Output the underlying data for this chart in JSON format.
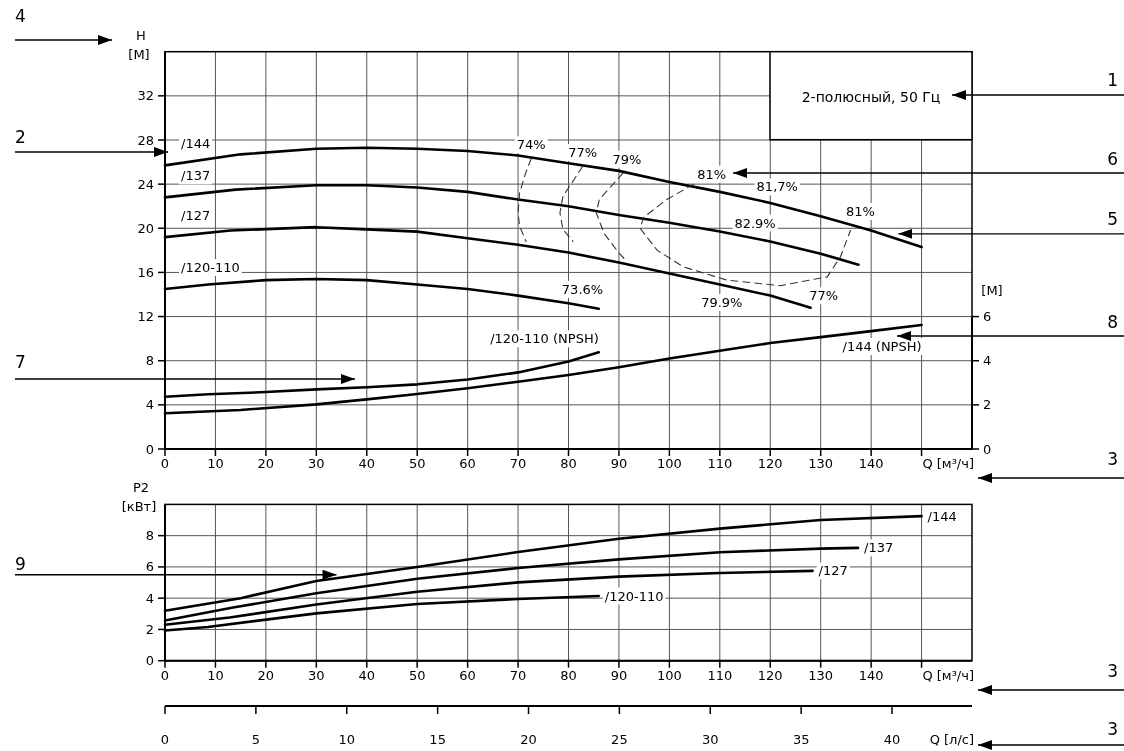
{
  "chart_data": [
    {
      "type": "line",
      "title": "2-полюсный, 50 Гц",
      "xlabel": "Q [м³/ч]",
      "ylabel": "H [М]",
      "y2label": "[М]",
      "xlim": [
        0,
        160
      ],
      "xticks": [
        0,
        10,
        20,
        30,
        40,
        50,
        60,
        70,
        80,
        90,
        100,
        110,
        120,
        130,
        140,
        {
          "value": 150,
          "label": null
        }
      ],
      "ylim": [
        0,
        36
      ],
      "yticks": [
        0,
        4,
        8,
        12,
        16,
        20,
        24,
        28,
        32
      ],
      "y2lim": [
        0,
        18
      ],
      "y2ticks": [
        0,
        2,
        4,
        6
      ],
      "grid": true,
      "series": [
        {
          "name": "/144",
          "color": "#000000",
          "x": [
            0,
            15,
            30,
            40,
            50,
            60,
            70,
            80,
            90,
            100,
            110,
            120,
            130,
            140,
            150
          ],
          "values": [
            25.7,
            26.7,
            27.2,
            27.3,
            27.2,
            27.0,
            26.6,
            25.9,
            25.2,
            24.2,
            23.3,
            22.3,
            21.1,
            19.8,
            18.3
          ]
        },
        {
          "name": "/137",
          "color": "#000000",
          "x": [
            0,
            14,
            30,
            40,
            50,
            60,
            70,
            80,
            90,
            100,
            110,
            120,
            130,
            137.5
          ],
          "values": [
            22.8,
            23.5,
            23.9,
            23.9,
            23.7,
            23.3,
            22.6,
            22.0,
            21.2,
            20.5,
            19.7,
            18.8,
            17.7,
            16.7
          ]
        },
        {
          "name": "/127",
          "color": "#000000",
          "x": [
            0,
            13,
            30,
            40,
            50,
            60,
            70,
            80,
            90,
            100,
            110,
            120,
            128
          ],
          "values": [
            19.2,
            19.8,
            20.1,
            19.9,
            19.7,
            19.1,
            18.5,
            17.8,
            16.9,
            15.9,
            14.9,
            13.9,
            12.8
          ]
        },
        {
          "name": "/120-110",
          "color": "#000000",
          "x": [
            0,
            8.6,
            20,
            30,
            40,
            50,
            60,
            70,
            80,
            86
          ],
          "values": [
            14.5,
            14.9,
            15.3,
            15.4,
            15.3,
            14.9,
            14.5,
            13.9,
            13.2,
            12.7
          ]
        },
        {
          "name": "/120-110 (NPSH)",
          "color": "#000000",
          "axis": "y2",
          "x": [
            0,
            8.6,
            20,
            30,
            40,
            50,
            60,
            70,
            80,
            86
          ],
          "values": [
            2.37,
            2.48,
            2.58,
            2.7,
            2.8,
            2.93,
            3.15,
            3.47,
            3.96,
            4.38
          ]
        },
        {
          "name": "/144 (NPSH)",
          "color": "#000000",
          "axis": "y2",
          "x": [
            0,
            15,
            30,
            40,
            50,
            60,
            70,
            80,
            90,
            100,
            110,
            120,
            130,
            140,
            150
          ],
          "values": [
            1.62,
            1.77,
            2.02,
            2.25,
            2.49,
            2.75,
            3.05,
            3.35,
            3.7,
            4.1,
            4.45,
            4.8,
            5.07,
            5.34,
            5.62
          ]
        },
        {
          "color": "#333333",
          "line_style": "dashed",
          "x": [
            72.6,
            71.5,
            70.3,
            70,
            70.3,
            71.6
          ],
          "values": [
            26.3,
            25,
            23.2,
            21.4,
            20.2,
            18.8
          ]
        },
        {
          "color": "#333333",
          "line_style": "dashed",
          "x": [
            82.8,
            78.9,
            78.3,
            78.9,
            80.9
          ],
          "values": [
            25.6,
            22.9,
            21.4,
            19.9,
            18.8
          ]
        },
        {
          "color": "#333333",
          "line_style": "dashed",
          "x": [
            90.8,
            86.1,
            85.5,
            87.1,
            90.1,
            91.6
          ],
          "values": [
            25.0,
            22.6,
            21.4,
            19.5,
            17.7,
            17.0
          ]
        },
        {
          "color": "#333333",
          "line_style": "dashed",
          "x": [
            104.8,
            99.5,
            94.9,
            94.2,
            97.6,
            102.8,
            111.4,
            122,
            131.3,
            133.9,
            135.9
          ],
          "values": [
            24.0,
            22.6,
            21.0,
            20.0,
            18.0,
            16.5,
            15.3,
            14.8,
            15.6,
            17.4,
            19.8
          ]
        }
      ],
      "annotations": [
        {
          "text": "74%",
          "x": 72.6,
          "y": 26.3
        },
        {
          "text": "77%",
          "x": 82.8,
          "y": 25.6
        },
        {
          "text": "79%",
          "x": 90.8,
          "y": 25.0
        },
        {
          "text": "81%",
          "x": 104.8,
          "y": 24.0
        },
        {
          "text": "81,7%",
          "x": 120,
          "y": 22.3
        },
        {
          "text": "82.9%",
          "x": 115,
          "y": 19.3
        },
        {
          "text": "81%",
          "x": 135.9,
          "y": 19.8
        },
        {
          "text": "79.9%",
          "x": 110,
          "y": 14.9
        },
        {
          "text": "77%",
          "x": 128,
          "y": 12.8
        },
        {
          "text": "73.6%",
          "x": 80,
          "y": 13.2
        },
        "4",
        "1",
        "2",
        "6",
        {
          "text": "5",
          "x": 145.4,
          "y": 19.5
        },
        "7",
        "8",
        "3"
      ]
    },
    {
      "type": "line",
      "xlabel": "Q [м³/ч]",
      "ylabel": "P2 [кВт]",
      "x2label": "Q [л/с]",
      "xlim": [
        0,
        160
      ],
      "xticks": [
        0,
        10,
        20,
        30,
        40,
        50,
        60,
        70,
        80,
        90,
        100,
        110,
        120,
        130,
        140,
        {
          "value": 150,
          "label": null
        }
      ],
      "ylim": [
        0,
        10
      ],
      "yticks": [
        0,
        2,
        4,
        6,
        8
      ],
      "x2lim": [
        0,
        44.4
      ],
      "x2ticks": [
        0,
        5,
        10,
        15,
        20,
        25,
        30,
        35,
        40
      ],
      "grid": true,
      "series": [
        {
          "name": "/144",
          "color": "#000000",
          "x": [
            0,
            15,
            30,
            50,
            70,
            90,
            110,
            130,
            150
          ],
          "values": [
            3.2,
            4.0,
            5.1,
            6.0,
            6.95,
            7.8,
            8.45,
            9.0,
            9.25
          ]
        },
        {
          "name": "/137",
          "color": "#000000",
          "x": [
            0,
            13.5,
            30,
            50,
            70,
            90,
            110,
            130,
            137.4
          ],
          "values": [
            2.57,
            3.4,
            4.32,
            5.24,
            5.93,
            6.48,
            6.94,
            7.17,
            7.22
          ]
        },
        {
          "name": "/127",
          "color": "#000000",
          "x": [
            0,
            12.8,
            30,
            50,
            70,
            90,
            110,
            128.4
          ],
          "values": [
            2.3,
            2.76,
            3.59,
            4.41,
            5.01,
            5.38,
            5.61,
            5.75
          ]
        },
        {
          "name": "/120-110",
          "color": "#000000",
          "x": [
            0,
            8.5,
            30,
            50,
            70,
            86
          ],
          "values": [
            1.93,
            2.16,
            3.03,
            3.63,
            3.95,
            4.14
          ]
        }
      ],
      "annotations": [
        {
          "text": "9",
          "x": 34,
          "y": 5.5
        },
        "3",
        "3"
      ]
    }
  ]
}
